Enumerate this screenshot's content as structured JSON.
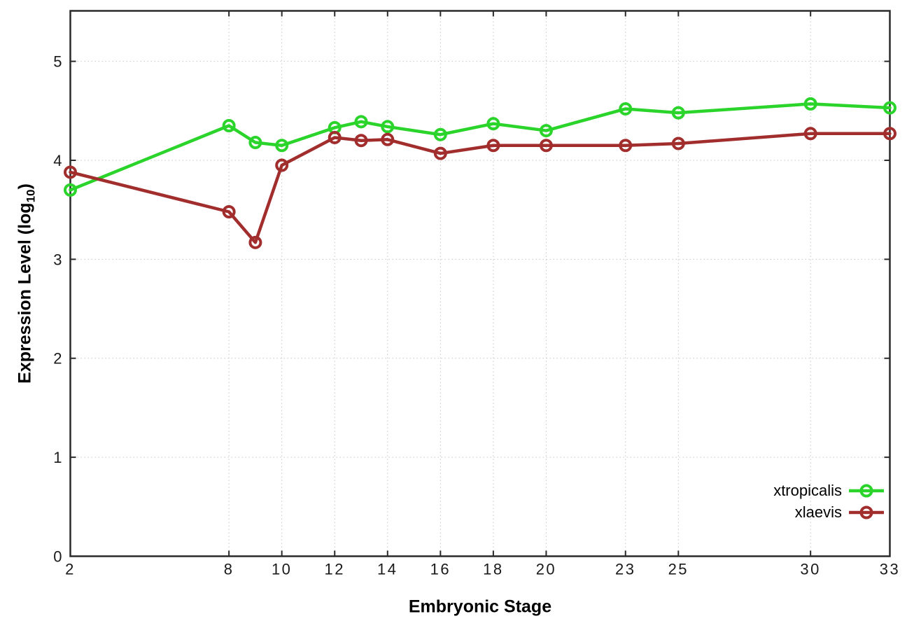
{
  "figure": {
    "background": "#ffffff"
  },
  "chart_data": {
    "type": "line",
    "title": "",
    "xlabel": "Embryonic Stage",
    "ylabel": "Expression Level (log10)",
    "ylabel_parts": {
      "prefix": "Expression Level (log",
      "sub": "10",
      "suffix": ")"
    },
    "x": [
      2,
      8,
      9,
      10,
      12,
      13,
      14,
      16,
      18,
      20,
      23,
      25,
      30,
      33
    ],
    "x_ticks": [
      2,
      8,
      10,
      12,
      14,
      16,
      18,
      20,
      23,
      25,
      30,
      33
    ],
    "y_ticks": [
      0,
      1,
      2,
      3,
      4,
      5
    ],
    "xlim": [
      2,
      33
    ],
    "ylim": [
      0,
      5.51
    ],
    "grid": true,
    "marker": "open-circle",
    "legend_position": "inside-bottom-right",
    "series": [
      {
        "name": "xtropicalis",
        "color": "#2bd42b",
        "values": [
          3.7,
          4.35,
          4.18,
          4.15,
          4.33,
          4.39,
          4.34,
          4.26,
          4.37,
          4.3,
          4.52,
          4.48,
          4.57,
          4.53
        ]
      },
      {
        "name": "xlaevis",
        "color": "#a12d2d",
        "values": [
          3.88,
          3.48,
          3.17,
          3.95,
          4.23,
          4.2,
          4.21,
          4.07,
          4.15,
          4.15,
          4.15,
          4.17,
          4.27,
          4.27
        ]
      }
    ]
  },
  "style": {
    "axis_color": "#2a2a2a",
    "grid_color": "#c6c6c6",
    "tick_label_color": "#1a1a1a",
    "line_width": 4.5,
    "marker_radius": 7.5,
    "marker_stroke": 4
  }
}
